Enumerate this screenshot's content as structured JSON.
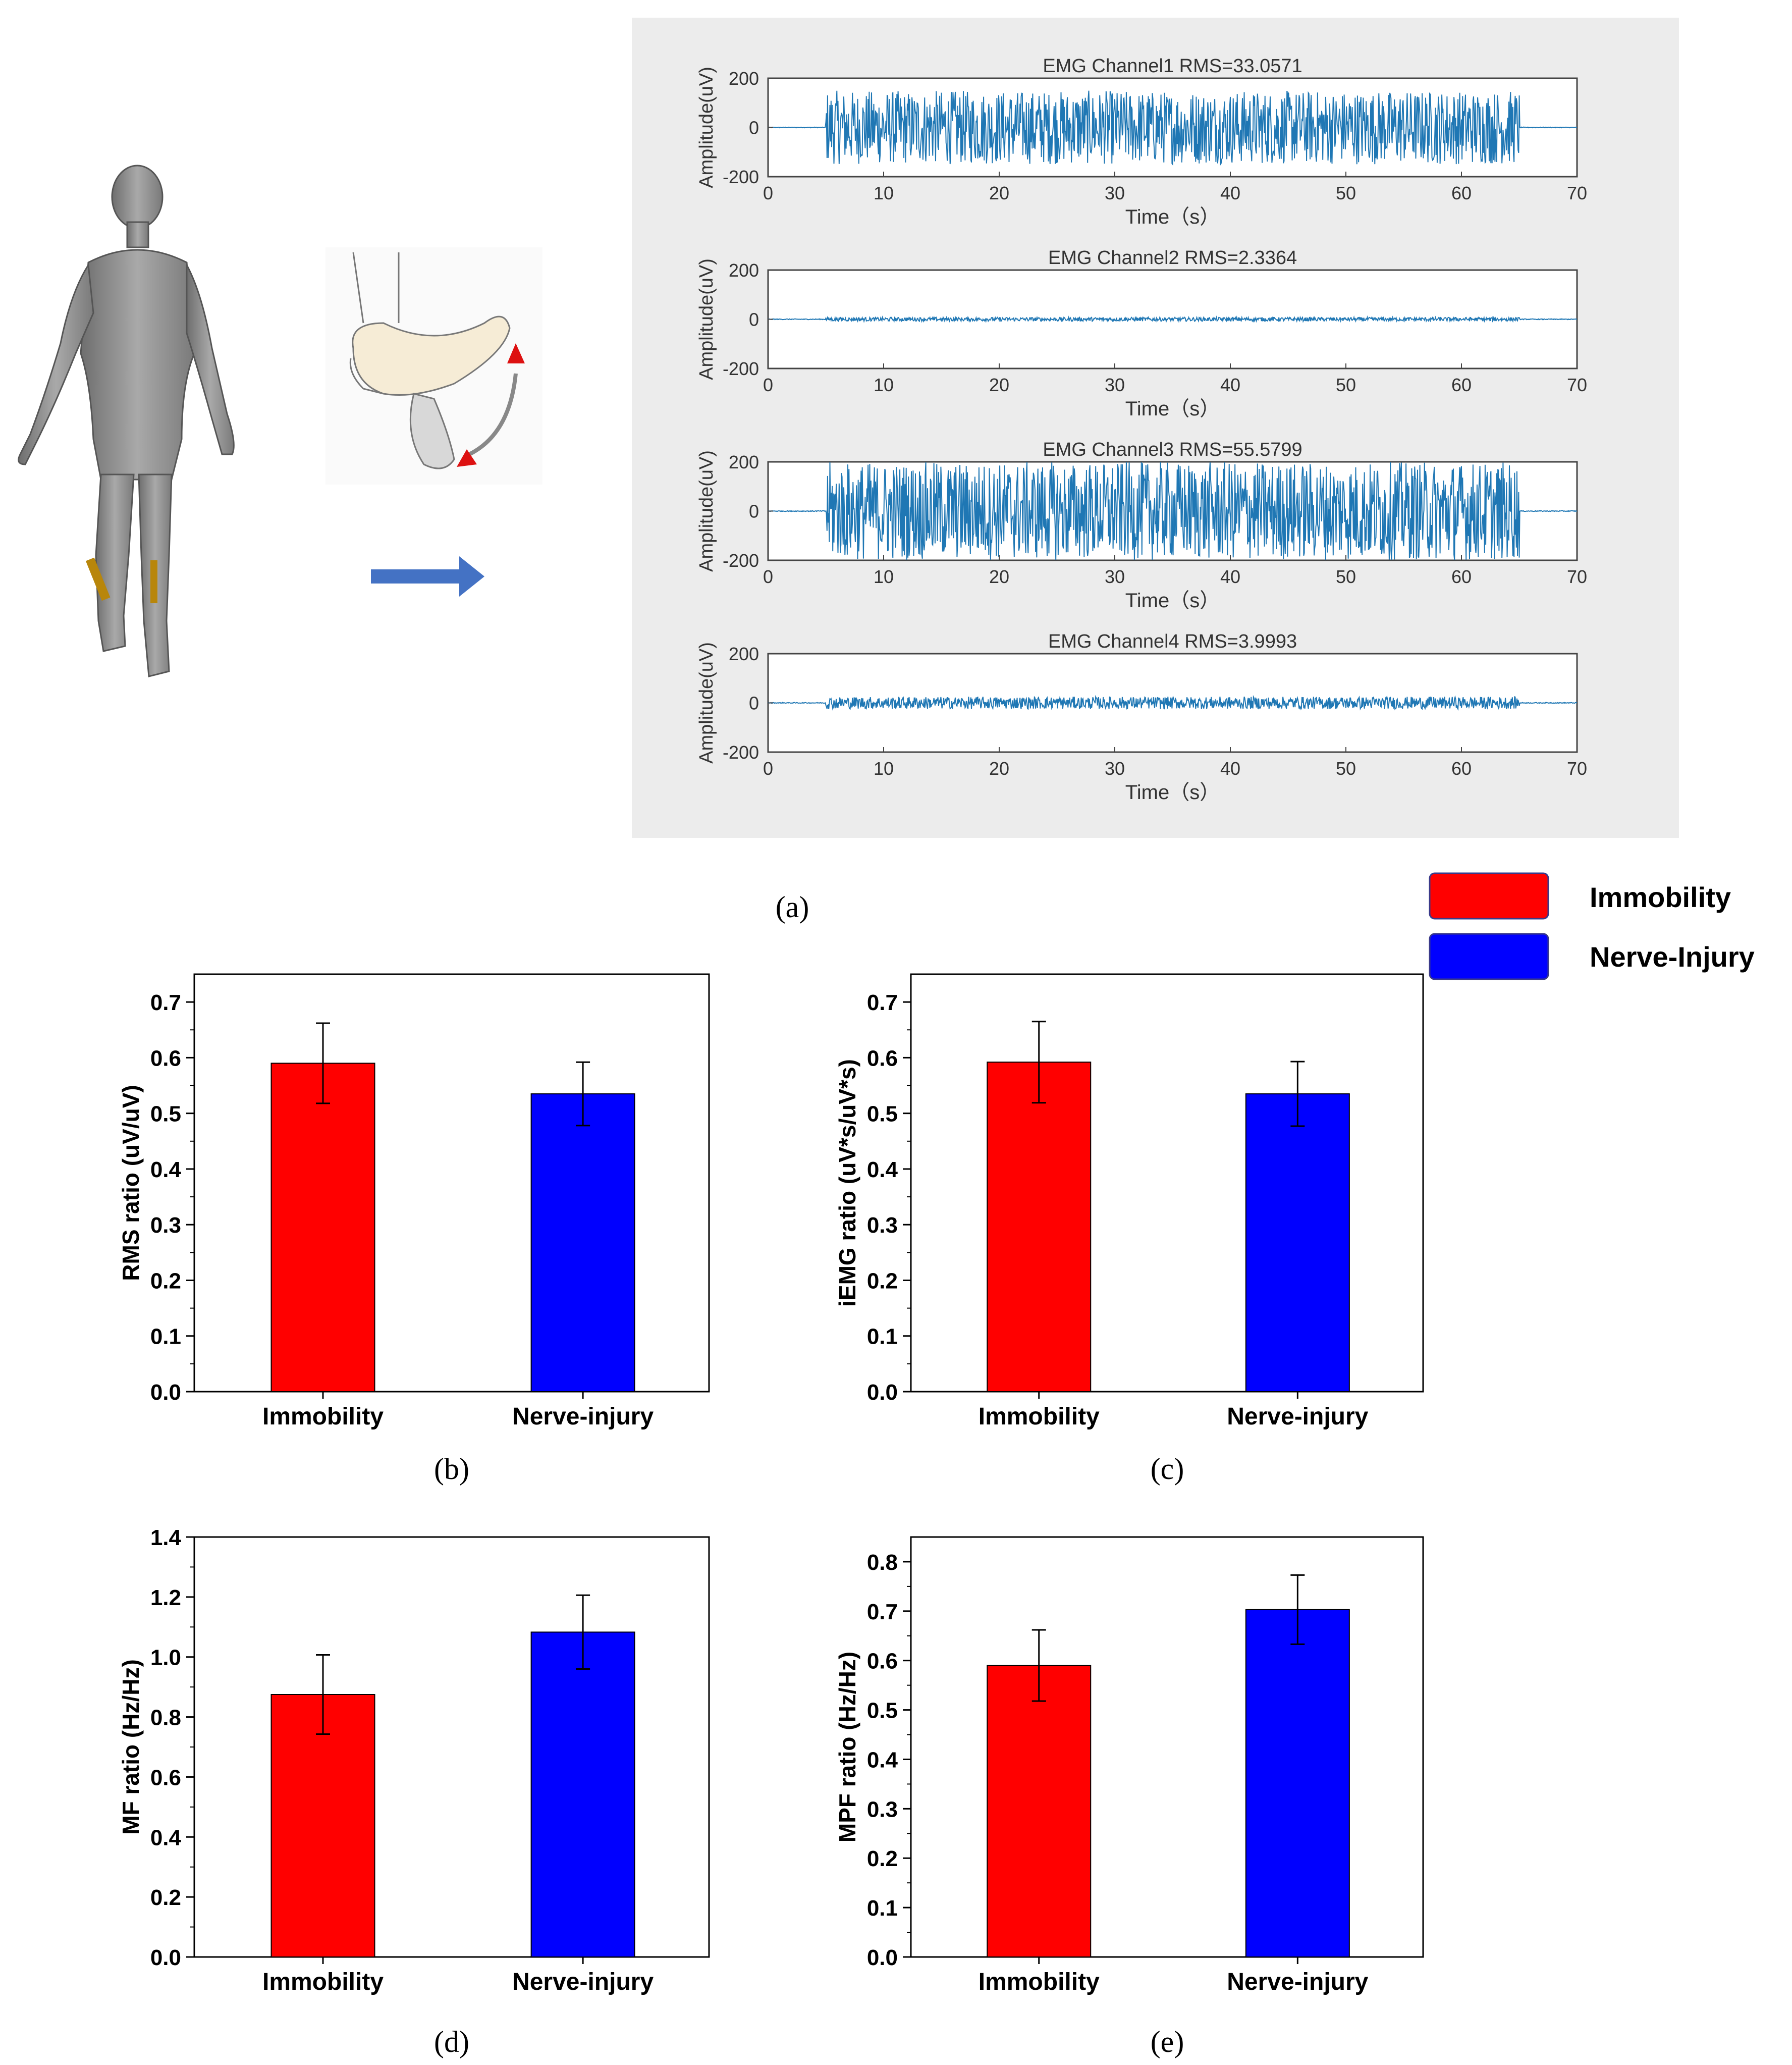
{
  "colors": {
    "immobility": "#ff0000",
    "nerve_injury": "#0000ff",
    "emg_trace": "#1f77b4",
    "panel_bg": "#ececec",
    "arrow": "#4472c4",
    "motion_arrow": "#dd1111"
  },
  "icons": {
    "body": "human-body-model-icon",
    "foot": "foot-dorsiflexion-icon",
    "arrow": "right-arrow-icon"
  },
  "legend": [
    {
      "label": "Immobility",
      "color": "#ff0000"
    },
    {
      "label": "Nerve-Injury",
      "color": "#0000ff"
    }
  ],
  "captions": {
    "a": "(a)",
    "b": "(b)",
    "c": "(c)",
    "d": "(d)",
    "e": "(e)"
  },
  "chart_data": [
    {
      "id": "emg1",
      "type": "line",
      "title": "EMG Channel1 RMS=33.0571",
      "xlabel": "Time（s）",
      "ylabel": "Amplitude(uV)",
      "xlim": [
        0,
        70
      ],
      "ylim": [
        -200,
        200
      ],
      "xticks": [
        "0",
        "10",
        "20",
        "30",
        "40",
        "50",
        "60",
        "70"
      ],
      "yticks": [
        "200",
        "0",
        "-200"
      ],
      "active_interval": [
        5,
        65
      ],
      "peak_amplitude": 150
    },
    {
      "id": "emg2",
      "type": "line",
      "title": "EMG Channel2 RMS=2.3364",
      "xlabel": "Time（s）",
      "ylabel": "Amplitude(uV)",
      "xlim": [
        0,
        70
      ],
      "ylim": [
        -200,
        200
      ],
      "xticks": [
        "0",
        "10",
        "20",
        "30",
        "40",
        "50",
        "60",
        "70"
      ],
      "yticks": [
        "200",
        "0",
        "-200"
      ],
      "active_interval": [
        5,
        65
      ],
      "peak_amplitude": 8
    },
    {
      "id": "emg3",
      "type": "line",
      "title": "EMG Channel3 RMS=55.5799",
      "xlabel": "Time（s）",
      "ylabel": "Amplitude(uV)",
      "xlim": [
        0,
        70
      ],
      "ylim": [
        -200,
        200
      ],
      "xticks": [
        "0",
        "10",
        "20",
        "30",
        "40",
        "50",
        "60",
        "70"
      ],
      "yticks": [
        "200",
        "0",
        "-200"
      ],
      "active_interval": [
        5,
        65
      ],
      "peak_amplitude": 200
    },
    {
      "id": "emg4",
      "type": "line",
      "title": "EMG Channel4 RMS=3.9993",
      "xlabel": "Time（s）",
      "ylabel": "Amplitude(uV)",
      "xlim": [
        0,
        70
      ],
      "ylim": [
        -200,
        200
      ],
      "xticks": [
        "0",
        "10",
        "20",
        "30",
        "40",
        "50",
        "60",
        "70"
      ],
      "yticks": [
        "200",
        "0",
        "-200"
      ],
      "active_interval": [
        5,
        65
      ],
      "peak_amplitude": 25
    },
    {
      "id": "b",
      "type": "bar",
      "categories": [
        "Immobility",
        "Nerve-injury"
      ],
      "values": [
        0.59,
        0.535
      ],
      "errors": [
        0.072,
        0.057
      ],
      "ylabel": "RMS ratio (uV/uV)",
      "ylim": [
        0,
        0.75
      ],
      "yticks": [
        "0.0",
        "0.1",
        "0.2",
        "0.3",
        "0.4",
        "0.5",
        "0.6",
        "0.7"
      ]
    },
    {
      "id": "c",
      "type": "bar",
      "categories": [
        "Immobility",
        "Nerve-injury"
      ],
      "values": [
        0.592,
        0.535
      ],
      "errors": [
        0.073,
        0.058
      ],
      "ylabel": "iEMG ratio (uV*s/uV*s)",
      "ylim": [
        0,
        0.75
      ],
      "yticks": [
        "0.0",
        "0.1",
        "0.2",
        "0.3",
        "0.4",
        "0.5",
        "0.6",
        "0.7"
      ]
    },
    {
      "id": "d",
      "type": "bar",
      "categories": [
        "Immobility",
        "Nerve-injury"
      ],
      "values": [
        0.875,
        1.083
      ],
      "errors": [
        0.132,
        0.123
      ],
      "ylabel": "MF ratio (Hz/Hz)",
      "ylim": [
        0,
        1.4
      ],
      "yticks": [
        "0.0",
        "0.2",
        "0.4",
        "0.6",
        "0.8",
        "1.0",
        "1.2",
        "1.4"
      ]
    },
    {
      "id": "e",
      "type": "bar",
      "categories": [
        "Immobility",
        "Nerve-injury"
      ],
      "values": [
        0.59,
        0.703
      ],
      "errors": [
        0.072,
        0.07
      ],
      "ylabel": "MPF ratio (Hz/Hz)",
      "ylim": [
        0,
        0.85
      ],
      "yticks": [
        "0.0",
        "0.1",
        "0.2",
        "0.3",
        "0.4",
        "0.5",
        "0.6",
        "0.7",
        "0.8"
      ]
    }
  ]
}
